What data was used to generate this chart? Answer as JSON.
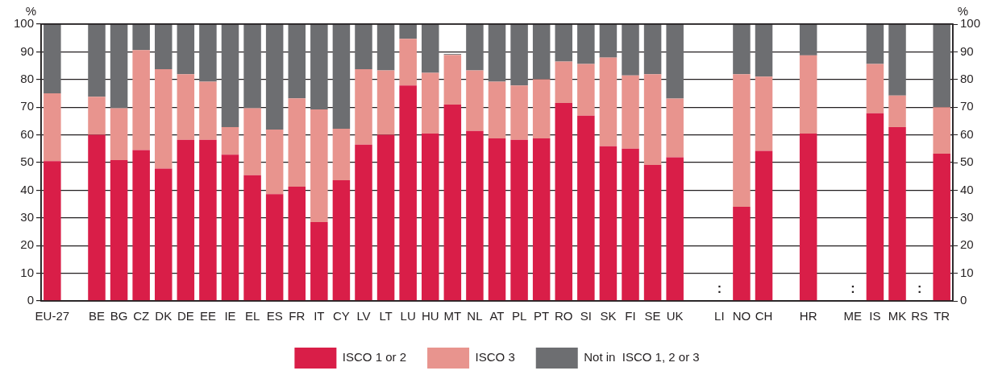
{
  "chart_data": {
    "type": "bar",
    "stacked": true,
    "annotations": [
      "%",
      "%"
    ],
    "categories": [
      "EU-27",
      null,
      "BE",
      "BG",
      "CZ",
      "DK",
      "DE",
      "EE",
      "IE",
      "EL",
      "ES",
      "FR",
      "IT",
      "CY",
      "LV",
      "LT",
      "LU",
      "HU",
      "MT",
      "NL",
      "AT",
      "PL",
      "PT",
      "RO",
      "SI",
      "SK",
      "FI",
      "SE",
      "UK",
      null,
      "LI",
      "NO",
      "CH",
      null,
      "HR",
      null,
      "ME",
      "IS",
      "MK",
      "RS",
      "TR"
    ],
    "series": [
      {
        "name": "ISCO 1 or 2",
        "color": "#d91e48",
        "values": [
          50.5,
          null,
          60,
          50.9,
          54.5,
          47.8,
          58.2,
          58.2,
          52.8,
          45.4,
          38.6,
          41.3,
          28.5,
          43.6,
          56.5,
          60,
          77.8,
          60.5,
          70.9,
          61.4,
          58.7,
          58.2,
          58.7,
          71.5,
          66.9,
          55.9,
          55,
          49.1,
          51.9,
          null,
          null,
          34,
          54.2,
          null,
          60.5,
          null,
          null,
          67.8,
          62.8,
          null,
          53.2
        ],
        "value_labels": [
          null,
          null,
          null,
          null,
          null,
          null,
          null,
          null,
          null,
          null,
          null,
          null,
          null,
          null,
          null,
          null,
          null,
          null,
          null,
          null,
          null,
          null,
          null,
          null,
          null,
          null,
          null,
          null,
          null,
          null,
          ":",
          null,
          null,
          null,
          null,
          null,
          ":",
          null,
          null,
          ":",
          null
        ]
      },
      {
        "name": "ISCO 3",
        "color": "#e8948e",
        "values": [
          24.5,
          null,
          13.8,
          18.7,
          36.1,
          35.9,
          23.7,
          21,
          10,
          24.2,
          23.3,
          31.9,
          40.7,
          18.6,
          27.2,
          23.3,
          16.9,
          21.9,
          18,
          21.9,
          20.5,
          19.6,
          21.4,
          15,
          18.7,
          32,
          26.5,
          32.8,
          21.2,
          null,
          null,
          47.9,
          26.8,
          null,
          28.2,
          null,
          null,
          17.8,
          11.4,
          null,
          16.8
        ]
      },
      {
        "name": "Not in  ISCO 1, 2 or 3",
        "color": "#6d6e71",
        "values": [
          25,
          null,
          26.2,
          30.4,
          9.4,
          16.3,
          18.1,
          20.8,
          37.2,
          30.4,
          38.1,
          26.8,
          30.8,
          37.8,
          16.3,
          16.7,
          5.3,
          17.6,
          0.3,
          16.7,
          20.8,
          22.2,
          19.9,
          13.5,
          14.4,
          12.1,
          18.5,
          18.1,
          26.9,
          null,
          null,
          18.1,
          19,
          null,
          11.3,
          null,
          null,
          14.4,
          25.8,
          null,
          30
        ]
      }
    ],
    "ylim": [
      0,
      100
    ],
    "yticks": [
      0,
      10,
      20,
      30,
      40,
      50,
      60,
      70,
      80,
      90,
      100
    ],
    "y2lim": [
      0,
      100
    ],
    "y2ticks": [
      0,
      10,
      20,
      30,
      40,
      50,
      60,
      70,
      80,
      90,
      100
    ],
    "grid": "y",
    "legend": "bottom"
  }
}
